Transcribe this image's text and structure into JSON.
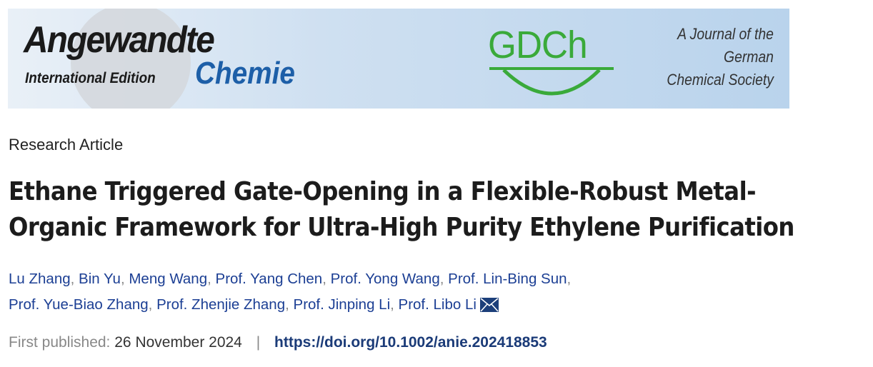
{
  "banner": {
    "journal_name_line1": "Angewandte",
    "journal_name_line2": "Chemie",
    "edition": "International Edition",
    "society_logo": "GDCh",
    "society_tagline": [
      "A Journal of the",
      "German",
      "Chemical Society"
    ],
    "colors": {
      "chemie_blue": "#1d5fa8",
      "gdch_green": "#3aaa3a"
    }
  },
  "article": {
    "type": "Research Article",
    "title_lines": [
      "Ethane Triggered Gate-Opening in a Flexible-Robust Metal-",
      "Organic Framework for Ultra-High Purity Ethylene Purification"
    ],
    "authors_line1": [
      "Lu Zhang",
      "Bin Yu",
      "Meng Wang",
      "Prof. Yang Chen",
      "Prof. Yong Wang",
      "Prof. Lin-Bing Sun"
    ],
    "authors_line2": [
      "Prof. Yue-Biao Zhang",
      "Prof. Zhenjie Zhang",
      "Prof. Jinping Li",
      "Prof. Libo Li"
    ],
    "separator": ",",
    "corresponding_icon": "envelope-icon",
    "first_published_label": "First published:",
    "first_published_date": "26 November 2024",
    "divider": "|",
    "doi": "https://doi.org/10.1002/anie.202418853"
  }
}
